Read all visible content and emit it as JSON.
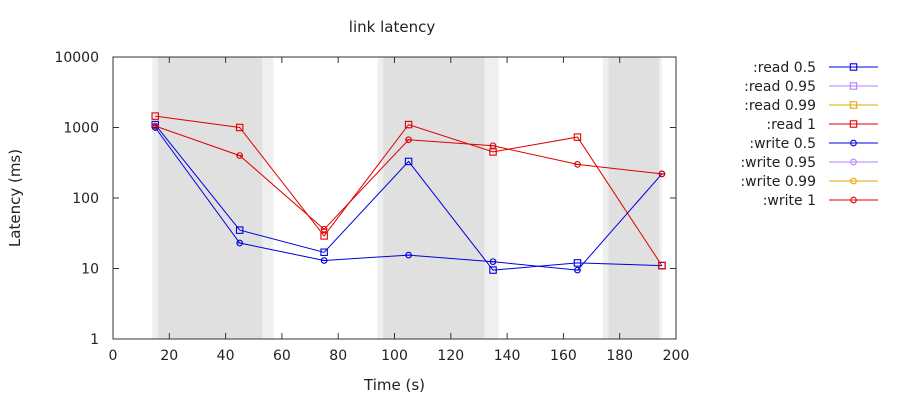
{
  "chart_data": {
    "type": "line",
    "title": "link latency",
    "xlabel": "Time (s)",
    "ylabel": "Latency (ms)",
    "xlim": [
      0,
      200
    ],
    "ylim": [
      1,
      10000
    ],
    "y_scale": "log",
    "grid": false,
    "legend_position": "right",
    "x_ticks": [
      0,
      20,
      40,
      60,
      80,
      100,
      120,
      140,
      160,
      180,
      200
    ],
    "y_ticks": [
      1,
      10,
      100,
      1000,
      10000
    ],
    "x_tick_labels": [
      "0",
      "20",
      "40",
      "60",
      "80",
      "100",
      "120",
      "140",
      "160",
      "180",
      "200"
    ],
    "y_tick_labels": [
      "1",
      "10",
      "100",
      "1000",
      "10000"
    ],
    "shaded_regions": [
      {
        "start": 14,
        "end": 57,
        "inner_start": 16,
        "inner_end": 53
      },
      {
        "start": 94,
        "end": 137,
        "inner_start": 96,
        "inner_end": 132
      },
      {
        "start": 174,
        "end": 195,
        "inner_start": 176,
        "inner_end": 194
      }
    ],
    "series": [
      {
        "name": ":read 0.5",
        "color": "#0000e0",
        "marker": "square",
        "x": [
          15,
          45,
          75,
          105,
          135,
          165,
          195
        ],
        "values": [
          1100,
          35,
          17,
          330,
          9.5,
          12,
          11
        ]
      },
      {
        "name": ":read 0.95",
        "color": "#b380ff",
        "marker": "square",
        "x": [],
        "values": []
      },
      {
        "name": ":read 0.99",
        "color": "#e6a800",
        "marker": "square",
        "x": [],
        "values": []
      },
      {
        "name": ":read 1",
        "color": "#e00000",
        "marker": "square",
        "x": [
          15,
          45,
          75,
          105,
          135,
          165,
          195
        ],
        "values": [
          1450,
          1000,
          29,
          1100,
          450,
          730,
          11
        ]
      },
      {
        "name": ":write 0.5",
        "color": "#0000e0",
        "marker": "circle",
        "x": [
          15,
          45,
          75,
          105,
          135,
          165,
          195
        ],
        "values": [
          1000,
          23,
          13,
          15.5,
          12.5,
          9.5,
          220
        ]
      },
      {
        "name": ":write 0.95",
        "color": "#b380ff",
        "marker": "circle",
        "x": [],
        "values": []
      },
      {
        "name": ":write 0.99",
        "color": "#e6a800",
        "marker": "circle",
        "x": [],
        "values": []
      },
      {
        "name": ":write 1",
        "color": "#e00000",
        "marker": "circle",
        "x": [
          15,
          45,
          75,
          105,
          135,
          165,
          195
        ],
        "values": [
          1050,
          400,
          36,
          670,
          550,
          300,
          220
        ]
      }
    ]
  }
}
